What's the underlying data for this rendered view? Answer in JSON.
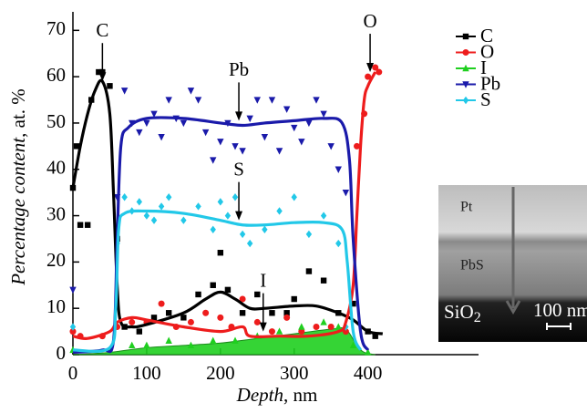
{
  "chart_data": {
    "type": "line",
    "x_label": {
      "italic": "Depth",
      "rest": ", nm"
    },
    "y_label": {
      "italic": "Percentage content",
      "rest": ", at. %"
    },
    "xlim": [
      0,
      550
    ],
    "xticks": [
      0,
      100,
      200,
      300,
      400
    ],
    "ylim": [
      0,
      74
    ],
    "yticks": [
      0,
      10,
      20,
      30,
      40,
      50,
      60,
      70
    ],
    "legend": "top-right",
    "series": [
      {
        "name": "C",
        "color": "#000000",
        "marker": "square",
        "x": [
          0,
          5,
          10,
          20,
          25,
          35,
          40,
          50,
          60,
          70,
          90,
          110,
          130,
          150,
          170,
          190,
          200,
          210,
          230,
          250,
          270,
          290,
          300,
          320,
          340,
          360,
          380,
          400,
          410
        ],
        "values": [
          36,
          45,
          28,
          28,
          55,
          61,
          61,
          58,
          25,
          6,
          5,
          8,
          9,
          8,
          13,
          15,
          22,
          14,
          9,
          13,
          9,
          9,
          12,
          18,
          16,
          9,
          11,
          5,
          4
        ],
        "fit_x": [
          0,
          10,
          20,
          30,
          40,
          50,
          55,
          60,
          65,
          80,
          100,
          150,
          180,
          200,
          220,
          240,
          260,
          300,
          330,
          360,
          380,
          400,
          420
        ],
        "fit_values": [
          36,
          45,
          52,
          57,
          59,
          52,
          35,
          15,
          7,
          6,
          6.5,
          9,
          12,
          13.5,
          12,
          10,
          10,
          10.5,
          10.5,
          9,
          7.5,
          5,
          4.5
        ]
      },
      {
        "name": "O",
        "color": "#ee1c1c",
        "marker": "circle",
        "x": [
          0,
          10,
          40,
          60,
          80,
          100,
          120,
          140,
          160,
          180,
          200,
          215,
          230,
          250,
          270,
          290,
          310,
          330,
          350,
          370,
          385,
          395,
          400,
          410,
          415
        ],
        "values": [
          5,
          4,
          4,
          6,
          7,
          7,
          11,
          6,
          7,
          9,
          8,
          6,
          12,
          7,
          5,
          8,
          5,
          6,
          6,
          5,
          45,
          52,
          60,
          62,
          61
        ],
        "fit_x": [
          0,
          20,
          50,
          60,
          80,
          100,
          150,
          200,
          230,
          240,
          280,
          320,
          360,
          370,
          380,
          385,
          390,
          395,
          400,
          410
        ],
        "fit_values": [
          4,
          3.5,
          5,
          7,
          8,
          7.5,
          6,
          5,
          6,
          4,
          4,
          4,
          5,
          7,
          15,
          30,
          45,
          55,
          58,
          61
        ]
      },
      {
        "name": "I",
        "color": "#1fcf1f",
        "marker": "triangle-up",
        "area": true,
        "x": [
          0,
          50,
          80,
          100,
          130,
          160,
          190,
          220,
          250,
          280,
          310,
          340,
          360,
          380,
          400
        ],
        "values": [
          1,
          1,
          2,
          2,
          3,
          2,
          3,
          3,
          4,
          5,
          6,
          7,
          6,
          2,
          0.5
        ],
        "fit_x": [
          0,
          50,
          100,
          150,
          200,
          250,
          300,
          350,
          370,
          385,
          395,
          410
        ],
        "fit_values": [
          0,
          0.5,
          1.5,
          2,
          2.5,
          3.5,
          4.5,
          5.5,
          5.5,
          2,
          0.5,
          0
        ]
      },
      {
        "name": "Pb",
        "color": "#1a1aaa",
        "marker": "triangle-down",
        "x": [
          0,
          60,
          70,
          80,
          90,
          100,
          110,
          120,
          130,
          140,
          150,
          160,
          170,
          180,
          190,
          200,
          210,
          220,
          230,
          240,
          250,
          260,
          270,
          280,
          290,
          300,
          310,
          320,
          330,
          340,
          350,
          360,
          370
        ],
        "values": [
          14,
          34,
          57,
          50,
          48,
          50,
          52,
          47,
          55,
          51,
          50,
          57,
          55,
          48,
          42,
          46,
          50,
          45,
          44,
          51,
          55,
          47,
          55,
          44,
          53,
          49,
          46,
          50,
          55,
          52,
          45,
          40,
          35
        ],
        "fit_x": [
          0,
          40,
          55,
          60,
          65,
          75,
          100,
          150,
          200,
          230,
          260,
          300,
          340,
          365,
          375,
          380,
          390,
          400
        ],
        "fit_values": [
          0.5,
          1,
          3,
          25,
          45,
          49,
          51,
          51,
          50,
          49.5,
          50,
          50.5,
          51,
          50,
          42,
          25,
          5,
          1
        ]
      },
      {
        "name": "S",
        "color": "#22c8e8",
        "marker": "diamond",
        "x": [
          0,
          60,
          70,
          80,
          90,
          100,
          110,
          120,
          130,
          150,
          170,
          190,
          200,
          210,
          220,
          230,
          240,
          260,
          280,
          300,
          320,
          340,
          360,
          370
        ],
        "values": [
          6,
          24,
          34,
          31,
          33,
          30,
          29,
          32,
          34,
          29,
          32,
          27,
          33,
          30,
          34,
          26,
          24,
          27,
          31,
          34,
          26,
          30,
          24,
          6
        ],
        "fit_x": [
          0,
          50,
          58,
          62,
          70,
          100,
          150,
          200,
          230,
          260,
          300,
          340,
          365,
          372,
          380,
          390
        ],
        "fit_values": [
          1,
          1.5,
          10,
          27,
          30.5,
          31,
          30.5,
          29,
          28,
          28,
          28.5,
          28.5,
          27,
          20,
          5,
          1
        ]
      }
    ],
    "annotations": [
      {
        "text": "C",
        "x": 40,
        "y": 59
      },
      {
        "text": "O",
        "x": 403,
        "y": 61
      },
      {
        "text": "Pb",
        "x": 225,
        "y": 50.5
      },
      {
        "text": "S",
        "x": 225,
        "y": 29
      },
      {
        "text": "I",
        "x": 258,
        "y": 5
      }
    ],
    "inset": {
      "labels": {
        "top": "Pt",
        "middle": "PbS",
        "bottom": "SiO",
        "bottom_sub": "2",
        "scale": "100 nm"
      }
    }
  }
}
